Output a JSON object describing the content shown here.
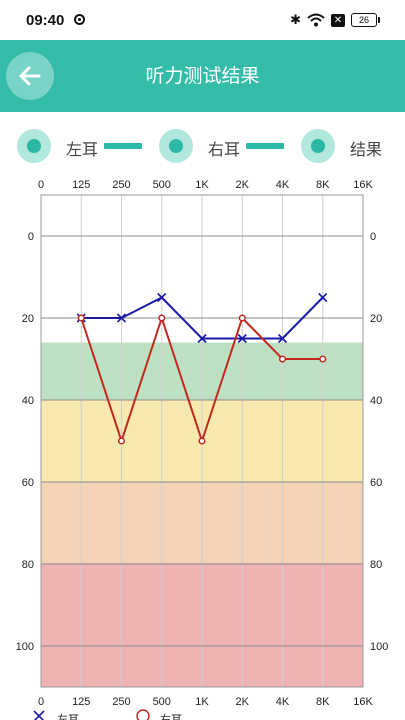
{
  "status": {
    "time": "09:40",
    "battery": "26"
  },
  "header": {
    "title": "听力测试结果"
  },
  "legend": {
    "left_ear": "左耳",
    "right_ear": "右耳",
    "result": "结果",
    "line_color": "#2cb8a5"
  },
  "chart_data": {
    "type": "line",
    "x_tick_labels": [
      "0",
      "125",
      "250",
      "500",
      "1K",
      "2K",
      "4K",
      "8K",
      "16K"
    ],
    "y_tick_labels": [
      "0",
      "20",
      "40",
      "60",
      "80",
      "100"
    ],
    "ylim": [
      -10,
      110
    ],
    "y_reversed": true,
    "bands": [
      {
        "from": 26,
        "to": 40,
        "color": "#bde0c3"
      },
      {
        "from": 40,
        "to": 60,
        "color": "#f8e9ae"
      },
      {
        "from": 60,
        "to": 80,
        "color": "#f3d2b6"
      },
      {
        "from": 80,
        "to": 110,
        "color": "#f0b3b3"
      }
    ],
    "series": [
      {
        "color": "#1a1aa6",
        "marker": "x",
        "points": [
          [
            1,
            20
          ],
          [
            2,
            20
          ],
          [
            3,
            15
          ],
          [
            4,
            25
          ],
          [
            5,
            25
          ],
          [
            6,
            25
          ],
          [
            7,
            15
          ]
        ]
      },
      {
        "color": "#c3281e",
        "marker": "o",
        "points": [
          [
            1,
            20
          ],
          [
            2,
            50
          ],
          [
            3,
            20
          ],
          [
            4,
            50
          ],
          [
            5,
            20
          ],
          [
            6,
            30
          ],
          [
            7,
            30
          ]
        ]
      }
    ],
    "bottom_legend": [
      "左耳",
      "右耳"
    ]
  }
}
